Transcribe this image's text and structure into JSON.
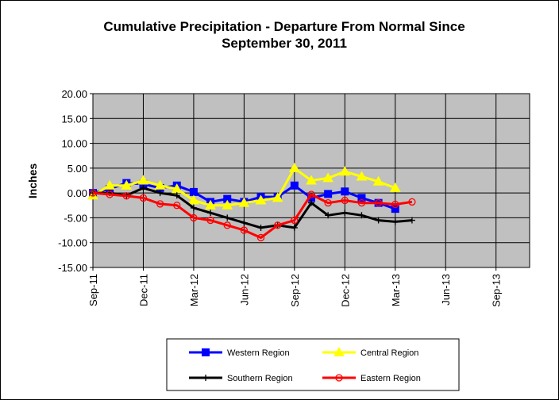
{
  "chart_data": {
    "type": "line",
    "title_line1": "Cumulative Precipitation - Departure From Normal Since",
    "title_line2": "September 30, 2011",
    "ylabel": "Inches",
    "ylim": [
      -15,
      20
    ],
    "yticks": [
      "20.00",
      "15.00",
      "10.00",
      "5.00",
      "0.00",
      "-5.00",
      "-10.00",
      "-15.00"
    ],
    "ytick_values": [
      20,
      15,
      10,
      5,
      0,
      -5,
      -10,
      -15
    ],
    "xlim": [
      0,
      26
    ],
    "xticks": [
      {
        "label": "Sep-11",
        "x": 0
      },
      {
        "label": "Dec-11",
        "x": 3
      },
      {
        "label": "Mar-12",
        "x": 6
      },
      {
        "label": "Jun-12",
        "x": 9
      },
      {
        "label": "Sep-12",
        "x": 12
      },
      {
        "label": "Dec-12",
        "x": 15
      },
      {
        "label": "Mar-13",
        "x": 18
      },
      {
        "label": "Jun-13",
        "x": 21
      },
      {
        "label": "Sep-13",
        "x": 24
      }
    ],
    "x": [
      0,
      1,
      2,
      3,
      4,
      5,
      6,
      7,
      8,
      9,
      10,
      11,
      12,
      13,
      14,
      15,
      16,
      17,
      18,
      19
    ],
    "series": [
      {
        "name": "Western Region",
        "color": "#0000ff",
        "marker": "square",
        "values": [
          0.0,
          0.8,
          2.0,
          1.8,
          1.0,
          1.5,
          0.2,
          -1.8,
          -1.2,
          -1.8,
          -0.8,
          -0.8,
          1.5,
          -1.0,
          -0.2,
          0.3,
          -1.0,
          -2.0,
          -3.2,
          null
        ],
        "show_dot": [
          true,
          true,
          true,
          true,
          true,
          true,
          true,
          true,
          true,
          true,
          true,
          true,
          true,
          true,
          true,
          true,
          true,
          true,
          true,
          false
        ]
      },
      {
        "name": "Central Region",
        "color": "#ffff00",
        "marker": "triangle",
        "values": [
          -0.5,
          1.5,
          1.5,
          2.5,
          1.5,
          0.8,
          -1.5,
          -2.5,
          -2.5,
          -2.0,
          -1.5,
          -1.0,
          5.0,
          2.5,
          3.0,
          4.3,
          3.3,
          2.3,
          1.0,
          null
        ],
        "show_dot": [
          true,
          true,
          true,
          true,
          true,
          true,
          true,
          true,
          true,
          true,
          true,
          true,
          true,
          true,
          true,
          true,
          true,
          true,
          true,
          false
        ]
      },
      {
        "name": "Southern Region",
        "color": "#000000",
        "marker": "plus",
        "values": [
          0.0,
          0.0,
          -0.5,
          1.0,
          0.0,
          -0.5,
          -3.0,
          -4.0,
          -5.0,
          -6.0,
          -7.0,
          -6.5,
          -7.0,
          -2.0,
          -4.5,
          -4.0,
          -4.5,
          -5.5,
          -5.8,
          -5.5
        ],
        "show_dot": [
          true,
          true,
          true,
          true,
          true,
          true,
          true,
          true,
          true,
          true,
          true,
          true,
          true,
          true,
          true,
          true,
          true,
          true,
          true,
          true
        ]
      },
      {
        "name": "Eastern Region",
        "color": "#ff0000",
        "marker": "circle",
        "values": [
          0.0,
          -0.3,
          -0.6,
          -1.0,
          -2.2,
          -2.5,
          -5.0,
          -5.5,
          -6.5,
          -7.5,
          -9.0,
          -6.5,
          -5.5,
          -0.3,
          -2.0,
          -1.5,
          -2.0,
          -2.0,
          -2.3,
          -1.8
        ],
        "show_dot": [
          true,
          true,
          true,
          true,
          true,
          true,
          true,
          true,
          true,
          true,
          true,
          true,
          true,
          true,
          true,
          true,
          true,
          true,
          true,
          true
        ]
      }
    ],
    "legend": {
      "position": "bottom",
      "entries": [
        "Western Region",
        "Central Region",
        "Southern Region",
        "Eastern Region"
      ]
    },
    "colors": {
      "plot_background": "#c0c0c0",
      "gridlines": "#000000"
    }
  }
}
